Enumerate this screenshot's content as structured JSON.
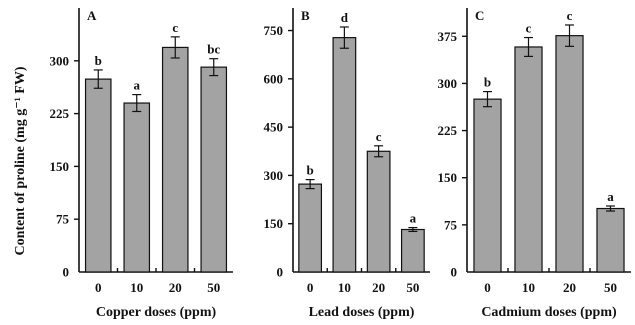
{
  "figure": {
    "y_axis_label": "Content of proline (mg g⁻¹ FW)"
  },
  "chart_data": [
    {
      "type": "bar",
      "panel": "A",
      "xlabel": "Copper doses (ppm)",
      "categories": [
        "0",
        "10",
        "20",
        "50"
      ],
      "values": [
        274,
        240,
        319,
        291
      ],
      "errors": [
        13,
        12,
        15,
        12
      ],
      "significance": [
        "b",
        "a",
        "c",
        "bc"
      ],
      "ylim": [
        0,
        375
      ],
      "yticks": [
        0,
        75,
        150,
        225,
        300
      ]
    },
    {
      "type": "bar",
      "panel": "B",
      "xlabel": "Lead doses (ppm)",
      "categories": [
        "0",
        "10",
        "20",
        "50"
      ],
      "values": [
        273,
        728,
        375,
        132
      ],
      "errors": [
        14,
        33,
        17,
        6
      ],
      "significance": [
        "b",
        "d",
        "c",
        "a"
      ],
      "ylim": [
        0,
        820
      ],
      "yticks": [
        0,
        150,
        300,
        450,
        600,
        750
      ]
    },
    {
      "type": "bar",
      "panel": "C",
      "xlabel": "Cadmium doses (ppm)",
      "categories": [
        "0",
        "10",
        "20",
        "50"
      ],
      "values": [
        275,
        358,
        376,
        101
      ],
      "errors": [
        12,
        15,
        17,
        4
      ],
      "significance": [
        "b",
        "c",
        "c",
        "a"
      ],
      "ylim": [
        0,
        420
      ],
      "yticks": [
        0,
        75,
        150,
        225,
        300,
        375
      ]
    }
  ]
}
